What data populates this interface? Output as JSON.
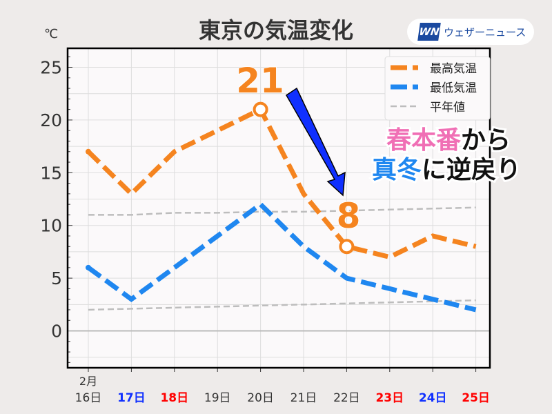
{
  "header": {
    "brand_mark": "WN",
    "brand_name": "ウェザーニュース"
  },
  "annotations": {
    "peak_label": "21",
    "low_label": "8",
    "headline_part1": "春本番",
    "headline_part2": "から",
    "headline_part3": "真冬",
    "headline_part4": "に逆戻り"
  },
  "colors": {
    "high": "#f5841f",
    "low": "#1f87f0",
    "normal": "#bdbdbd",
    "pink": "#f06fb5",
    "blue_text": "#1f87f0",
    "sat": "#1030ff",
    "hol": "#ff0000"
  },
  "chart_data": {
    "type": "line",
    "title": "東京の気温変化",
    "ylabel": "℃",
    "month_label": "2月",
    "ylim": [
      -3.5,
      26.8
    ],
    "yticks": [
      0,
      5,
      10,
      15,
      20,
      25
    ],
    "categories": [
      "16日",
      "17日",
      "18日",
      "19日",
      "20日",
      "21日",
      "22日",
      "23日",
      "24日",
      "25日"
    ],
    "category_colors": [
      "#333",
      "#1030ff",
      "#ff0000",
      "#333",
      "#333",
      "#333",
      "#333",
      "#ff0000",
      "#1030ff",
      "#ff0000"
    ],
    "series": [
      {
        "name": "最高気温",
        "values": [
          17,
          13,
          17,
          19,
          21,
          13,
          8,
          7,
          9,
          8
        ]
      },
      {
        "name": "最低気温",
        "values": [
          6,
          3,
          6,
          9,
          12,
          8,
          5,
          4,
          3,
          2
        ]
      },
      {
        "name": "平年値",
        "values": [
          11,
          11,
          11.2,
          11.2,
          11.3,
          11.3,
          11.4,
          11.5,
          11.6,
          11.7
        ]
      },
      {
        "name": "平年値-low",
        "values": [
          2,
          2.1,
          2.2,
          2.3,
          2.4,
          2.5,
          2.6,
          2.7,
          2.8,
          2.9
        ]
      }
    ],
    "legend": [
      "最高気温",
      "最低気温",
      "平年値"
    ],
    "legend_position": "top-right"
  }
}
